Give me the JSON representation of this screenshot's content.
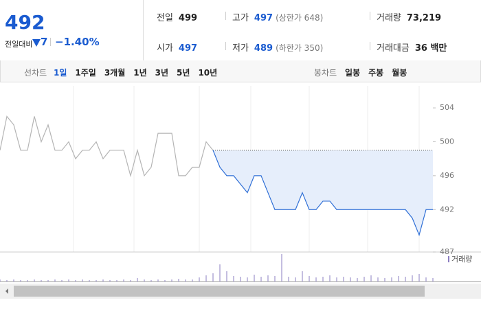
{
  "header": {
    "price": "492",
    "change_label": "전일대비",
    "change": "7",
    "change_rate": "−1.40%",
    "stats": [
      {
        "label": "전일",
        "value": "499",
        "color": "#222"
      },
      {
        "label": "고가",
        "value": "497",
        "note": "(상한가 648)",
        "color": "#1a5bd0"
      },
      {
        "label": "거래량",
        "value": "73,219",
        "color": "#222"
      },
      {
        "label": "시가",
        "value": "497",
        "color": "#1a5bd0"
      },
      {
        "label": "저가",
        "value": "489",
        "note": "(하한가 350)",
        "color": "#1a5bd0"
      },
      {
        "label": "거래대금",
        "value": "36 백만",
        "color": "#222"
      }
    ]
  },
  "line_tabs": {
    "label": "선차트",
    "items": [
      "1일",
      "1주일",
      "3개월",
      "1년",
      "3년",
      "5년",
      "10년"
    ],
    "selected": 0
  },
  "candle_tabs": {
    "label": "봉차트",
    "items": [
      "일봉",
      "주봉",
      "월봉"
    ]
  },
  "chart_data": {
    "type": "line",
    "ylim": [
      487,
      506.6
    ],
    "yticks": [
      504,
      500,
      496,
      492,
      487
    ],
    "reference_line": 499,
    "series": [
      {
        "color": "#b4b4b4",
        "values": [
          499,
          503,
          502,
          499,
          499,
          503,
          500,
          502,
          499,
          499,
          500,
          498,
          499,
          499,
          500,
          498,
          499,
          499,
          499,
          496,
          499,
          496,
          497,
          501,
          501,
          501,
          496,
          496,
          497,
          497,
          500,
          499,
          null,
          null,
          null,
          null,
          null,
          null,
          null,
          null,
          null,
          null,
          null,
          null,
          null,
          null,
          null,
          null,
          null,
          null,
          null,
          null,
          null,
          null,
          null,
          null,
          null,
          null,
          null,
          null,
          null,
          null,
          null,
          null
        ]
      },
      {
        "color": "#2f6fd6",
        "fill": "#e6eefb",
        "values": [
          null,
          null,
          null,
          null,
          null,
          null,
          null,
          null,
          null,
          null,
          null,
          null,
          null,
          null,
          null,
          null,
          null,
          null,
          null,
          null,
          null,
          null,
          null,
          null,
          null,
          null,
          null,
          null,
          null,
          null,
          null,
          499,
          497,
          496,
          496,
          495,
          494,
          496,
          496,
          494,
          492,
          492,
          492,
          492,
          494,
          492,
          492,
          493,
          493,
          492,
          492,
          492,
          492,
          492,
          492,
          492,
          492,
          492,
          492,
          492,
          491,
          489,
          492,
          492
        ]
      }
    ],
    "volume": {
      "name": "거래량",
      "color": "#8a7cc0",
      "values": [
        300,
        200,
        300,
        200,
        200,
        300,
        200,
        200,
        300,
        200,
        300,
        200,
        300,
        200,
        200,
        300,
        200,
        200,
        300,
        200,
        500,
        300,
        200,
        300,
        200,
        300,
        400,
        300,
        300,
        600,
        900,
        1200,
        2500,
        1500,
        800,
        700,
        600,
        1000,
        700,
        900,
        800,
        4000,
        700,
        600,
        1500,
        800,
        600,
        700,
        900,
        600,
        700,
        600,
        500,
        700,
        900,
        600,
        500,
        600,
        800,
        700,
        900,
        1100,
        600,
        500
      ]
    }
  }
}
